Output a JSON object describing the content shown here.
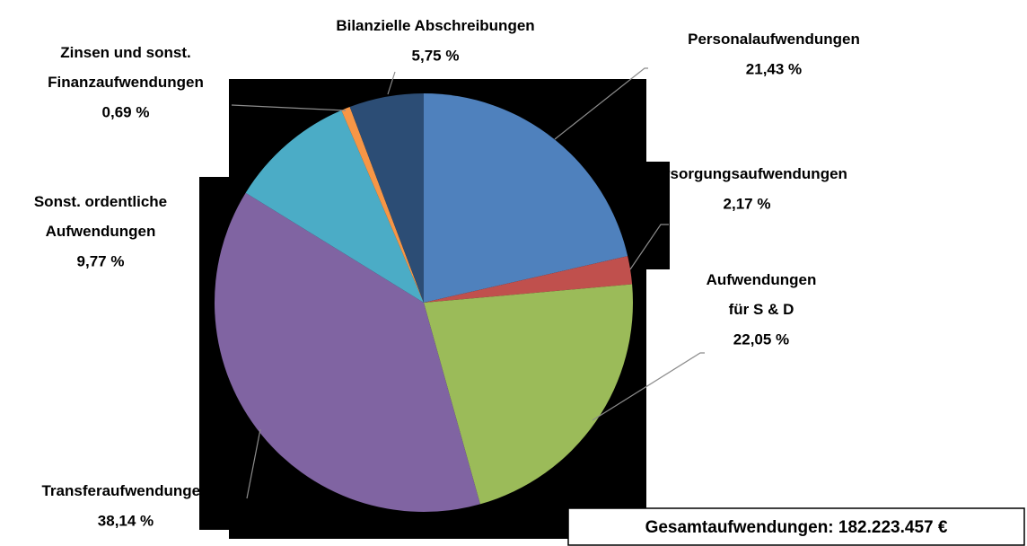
{
  "chart_data": {
    "type": "pie",
    "categories": [
      "Personalaufwendungen",
      "Versorgungsaufwendungen",
      "Aufwendungen\nfür S & D",
      "Transferaufwendungen",
      "Sonst. ordentliche\nAufwendungen",
      "Zinsen und sonst.\nFinanzaufwendungen",
      "Bilanzielle Abschreibungen"
    ],
    "values": [
      21.43,
      2.17,
      22.05,
      38.14,
      9.77,
      0.69,
      5.75
    ],
    "value_labels": [
      "21,43 %",
      "2,17 %",
      "22,05 %",
      "38,14 %",
      "9,77 %",
      "0,69 %",
      "5,75 %"
    ],
    "colors": [
      "#4f81bd",
      "#c0504d",
      "#9bbb59",
      "#8064a2",
      "#4bacc6",
      "#f79646",
      "#2c4d75"
    ],
    "annotation": "Gesamtaufwendungen: 182.223.457 €"
  }
}
